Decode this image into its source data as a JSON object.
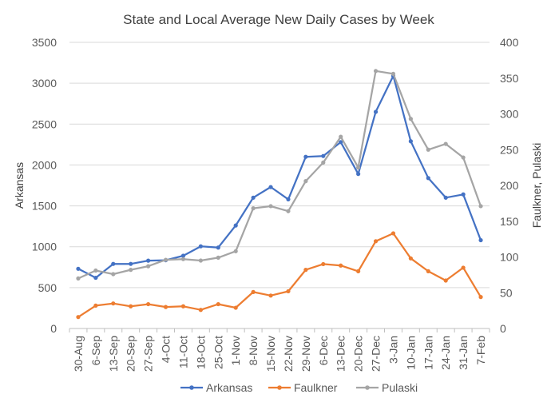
{
  "chart_data": {
    "type": "line",
    "title": "State and Local Average New Daily Cases by Week",
    "xlabel": "",
    "ylabel_left": "Arkansas",
    "ylabel_right": "Faulkner, Pulaski",
    "ylim_left": [
      0,
      3500
    ],
    "yticks_left": [
      0,
      500,
      1000,
      1500,
      2000,
      2500,
      3000,
      3500
    ],
    "ylim_right": [
      0,
      400
    ],
    "yticks_right": [
      0,
      50,
      100,
      150,
      200,
      250,
      300,
      350,
      400
    ],
    "grid": true,
    "legend_position": "bottom",
    "categories": [
      "30-Aug",
      "6-Sep",
      "13-Sep",
      "20-Sep",
      "27-Sep",
      "4-Oct",
      "11-Oct",
      "18-Oct",
      "25-Oct",
      "1-Nov",
      "8-Nov",
      "15-Nov",
      "22-Nov",
      "29-Nov",
      "6-Dec",
      "13-Dec",
      "20-Dec",
      "27-Dec",
      "3-Jan",
      "10-Jan",
      "17-Jan",
      "24-Jan",
      "31-Jan",
      "7-Feb"
    ],
    "series": [
      {
        "name": "Arkansas",
        "axis": "left",
        "color": "#4472C4",
        "values": [
          730,
          620,
          790,
          790,
          830,
          835,
          890,
          1005,
          990,
          1260,
          1600,
          1730,
          1580,
          2100,
          2110,
          2280,
          1890,
          2650,
          3090,
          2290,
          1840,
          1600,
          1640,
          1080
        ]
      },
      {
        "name": "Faulkner",
        "axis": "right",
        "color": "#ED7D31",
        "values": [
          16,
          32,
          35,
          31,
          34,
          30,
          31,
          26,
          34,
          29,
          51,
          46,
          52,
          82,
          90,
          88,
          80,
          122,
          133,
          98,
          80,
          67,
          85,
          44
        ]
      },
      {
        "name": "Pulaski",
        "axis": "right",
        "color": "#A5A5A5",
        "values": [
          70,
          81,
          76,
          82,
          87,
          96,
          97,
          95,
          99,
          108,
          168,
          171,
          164,
          206,
          232,
          268,
          225,
          360,
          356,
          293,
          250,
          258,
          239,
          171
        ]
      }
    ]
  }
}
